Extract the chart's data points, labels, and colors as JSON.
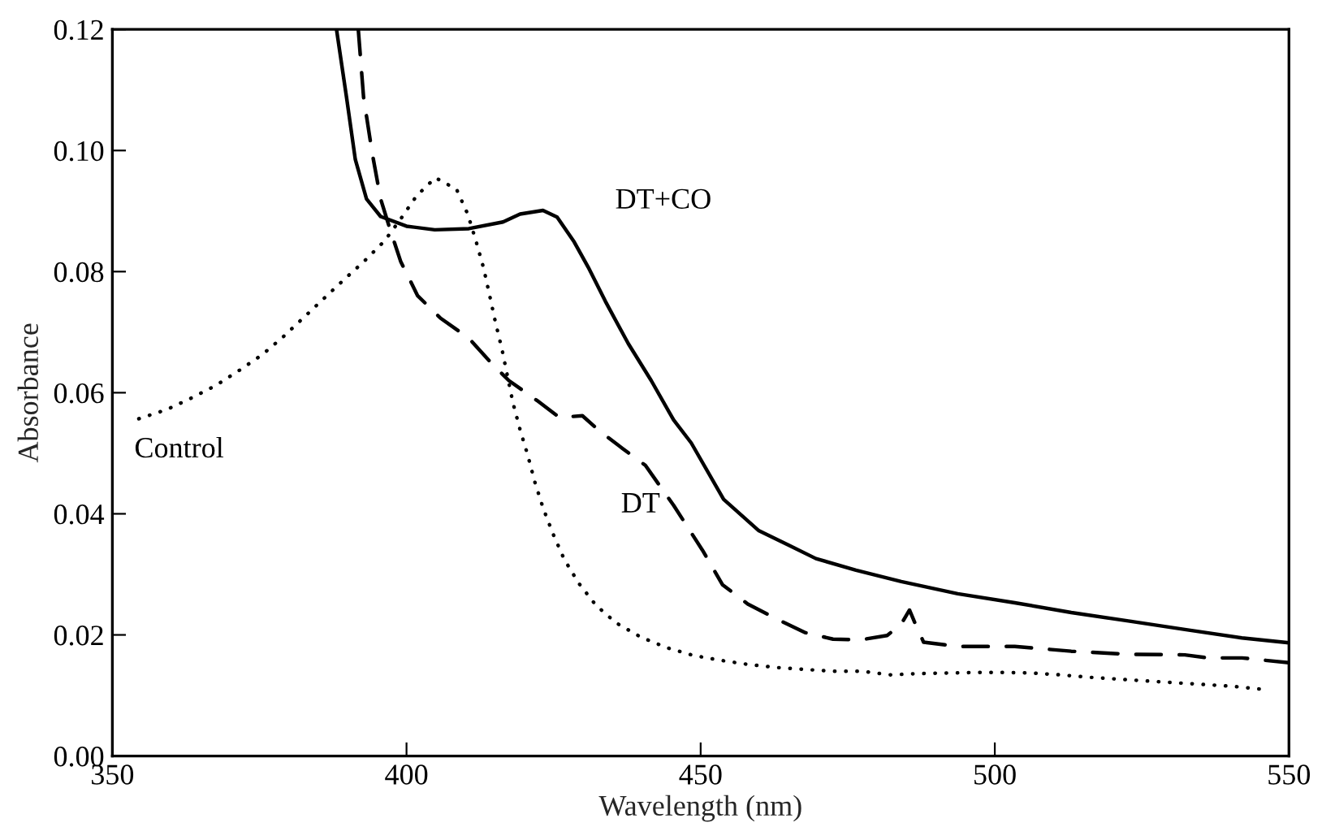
{
  "chart_data": {
    "type": "line",
    "xlabel": "Wavelength (nm)",
    "ylabel": "Absorbance",
    "xlim": [
      350,
      550
    ],
    "xticks": [
      350,
      400,
      450,
      500,
      550
    ],
    "ylim": [
      0,
      0.12
    ],
    "yticks": [
      {
        "value": 0,
        "label": "0.00"
      },
      {
        "value": 0.02,
        "label": "0.02"
      },
      {
        "value": 0.04,
        "label": "0.04"
      },
      {
        "value": 0.06,
        "label": "0.06"
      },
      {
        "value": 0.08,
        "label": "0.08"
      },
      {
        "value": 0.1,
        "label": "0.10"
      },
      {
        "value": 0.12,
        "label": "0.12"
      }
    ],
    "grid": false,
    "legend": false,
    "series": [
      {
        "name": "DT+CO",
        "color": "#000000",
        "line_style": "solid",
        "x": [
          388.1,
          389.8,
          391.3,
          393.2,
          395.6,
          400,
          404.8,
          410.6,
          416.4,
          419.3,
          423.2,
          425.6,
          428.5,
          430.9,
          433.8,
          437.7,
          441.6,
          445.4,
          448.4,
          453.9,
          459.9,
          464.8,
          469.6,
          476.4,
          484.1,
          493.7,
          503.4,
          513,
          522.7,
          532.3,
          542,
          550
        ],
        "values": [
          0.12,
          0.1088,
          0.0985,
          0.092,
          0.0891,
          0.0875,
          0.0869,
          0.0871,
          0.0882,
          0.0895,
          0.0901,
          0.089,
          0.0849,
          0.0807,
          0.0751,
          0.0681,
          0.062,
          0.0555,
          0.0517,
          0.0424,
          0.0372,
          0.0349,
          0.0326,
          0.0307,
          0.0288,
          0.0268,
          0.0253,
          0.0237,
          0.0223,
          0.0209,
          0.0195,
          0.0187
        ]
      },
      {
        "name": "DT",
        "color": "#000000",
        "line_style": "dashed",
        "x": [
          391.8,
          392.7,
          394.2,
          395.6,
          397.1,
          399.0,
          401.9,
          405.8,
          410.6,
          414.5,
          417.4,
          422.2,
          426,
          429.9,
          432.9,
          436.7,
          440.6,
          445.4,
          450.3,
          453.7,
          458,
          462.8,
          467.7,
          472.5,
          477.3,
          481.7,
          484.1,
          485.5,
          486.5,
          487.9,
          493.7,
          503.4,
          513,
          522.7,
          532.3,
          536.2,
          542,
          550
        ],
        "values": [
          0.12,
          0.1088,
          0.0994,
          0.092,
          0.0873,
          0.0817,
          0.076,
          0.0723,
          0.069,
          0.0648,
          0.062,
          0.0587,
          0.0559,
          0.0562,
          0.0536,
          0.0508,
          0.048,
          0.0414,
          0.034,
          0.0283,
          0.0251,
          0.0227,
          0.0204,
          0.0193,
          0.0192,
          0.0199,
          0.0218,
          0.0241,
          0.0218,
          0.0188,
          0.0181,
          0.0181,
          0.0173,
          0.0168,
          0.0167,
          0.0162,
          0.0162,
          0.0154
        ]
      },
      {
        "name": "Control",
        "color": "#000000",
        "line_style": "dotted",
        "x": [
          354.5,
          359.2,
          363.4,
          367.6,
          371.6,
          375.5,
          379,
          382.4,
          386,
          389.4,
          392.8,
          396.2,
          398.8,
          401.7,
          404.9,
          408.5,
          410.4,
          411.8,
          413.1,
          414.1,
          415.1,
          416.2,
          418.1,
          419.3,
          420.6,
          421.8,
          423.2,
          424.9,
          426.8,
          429.3,
          432.2,
          435.6,
          439.9,
          444.2,
          448.8,
          453.4,
          458.2,
          463.1,
          467.7,
          472.5,
          477.5,
          482.1,
          487,
          491.8,
          496.6,
          501.4,
          506.3,
          511.1,
          516.1,
          520.9,
          525.7,
          530.6,
          535.7,
          540.5,
          545.6
        ],
        "values": [
          0.0557,
          0.0572,
          0.0591,
          0.0612,
          0.0637,
          0.0663,
          0.0692,
          0.0723,
          0.0756,
          0.0787,
          0.0817,
          0.085,
          0.0884,
          0.0925,
          0.0955,
          0.0936,
          0.0895,
          0.0851,
          0.0806,
          0.0762,
          0.0717,
          0.0673,
          0.0583,
          0.0539,
          0.0497,
          0.0453,
          0.041,
          0.0367,
          0.0325,
          0.0285,
          0.0249,
          0.022,
          0.0196,
          0.0179,
          0.0166,
          0.0158,
          0.0151,
          0.0146,
          0.0143,
          0.014,
          0.014,
          0.0134,
          0.0136,
          0.0137,
          0.0138,
          0.0138,
          0.0137,
          0.0134,
          0.013,
          0.0127,
          0.0124,
          0.0121,
          0.0118,
          0.0115,
          0.011
        ]
      }
    ]
  }
}
